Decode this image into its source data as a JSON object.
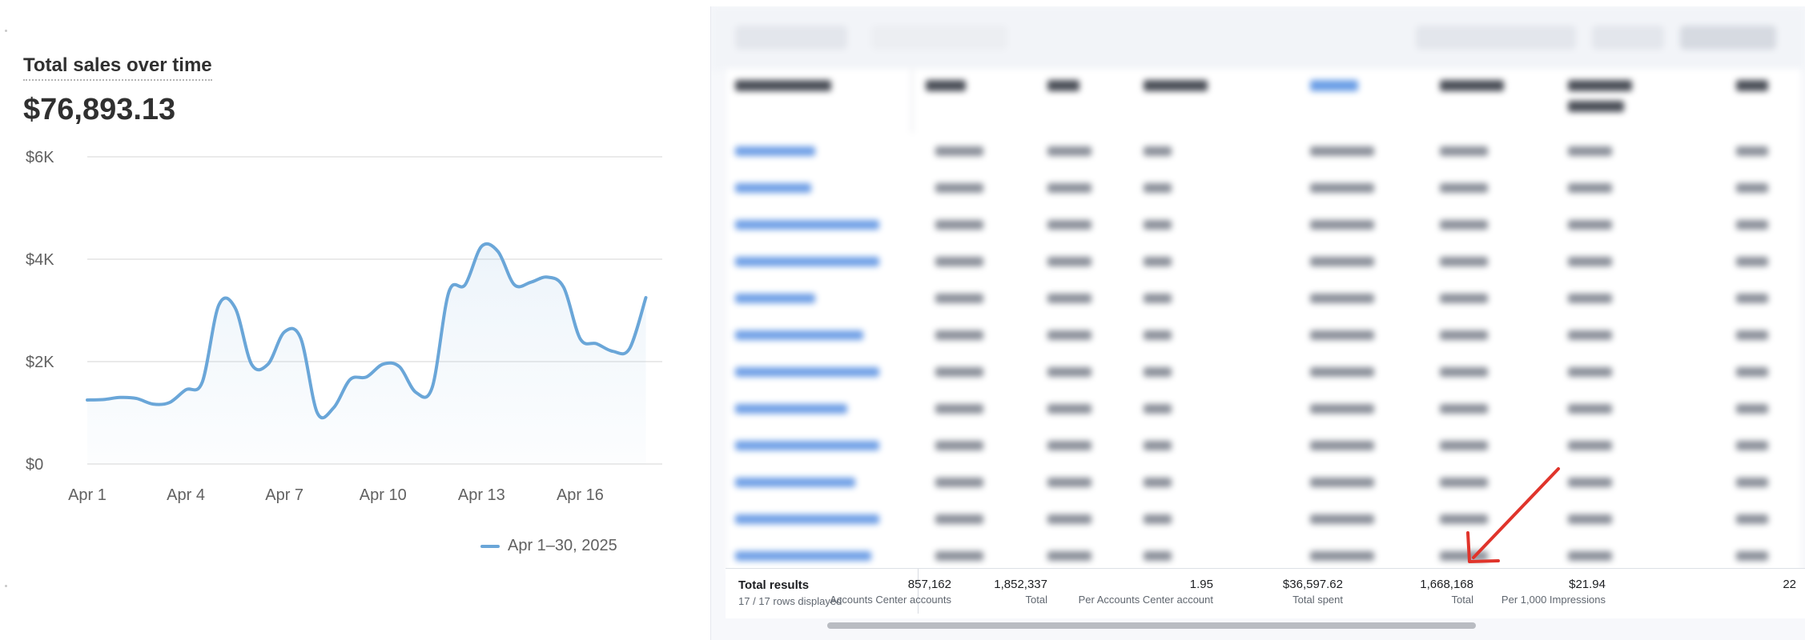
{
  "sales_card": {
    "title": "Total sales over time",
    "total": "$76,893.13",
    "legend_label": "Apr 1–30, 2025"
  },
  "chart_data": {
    "type": "line",
    "title": "Total sales over time",
    "xlabel": "",
    "ylabel": "",
    "x_tick_labels": [
      "Apr 1",
      "Apr 4",
      "Apr 7",
      "Apr 10",
      "Apr 13",
      "Apr 16"
    ],
    "y_tick_labels": [
      "$6K",
      "$4K",
      "$2K",
      "$0"
    ],
    "ylim": [
      0,
      6000
    ],
    "grid": true,
    "legend_position": "bottom-center",
    "series": [
      {
        "name": "Apr 1–30, 2025",
        "color": "#6aa6d8",
        "x": [
          1,
          1.5,
          2,
          2.5,
          3,
          3.5,
          4,
          4.5,
          5,
          5.5,
          6,
          6.5,
          7,
          7.5,
          8,
          8.5,
          9,
          9.5,
          10,
          10.5,
          11,
          11.5,
          12,
          12.5,
          13,
          13.5,
          14,
          14.5,
          15,
          15.5,
          16,
          16.5,
          17,
          17.5,
          18
        ],
        "values": [
          1250,
          1260,
          1300,
          1280,
          1170,
          1200,
          1450,
          1600,
          3100,
          3050,
          1950,
          1950,
          2580,
          2450,
          1000,
          1100,
          1650,
          1700,
          1950,
          1900,
          1400,
          1500,
          3350,
          3500,
          4250,
          4150,
          3500,
          3550,
          3650,
          3450,
          2450,
          2350,
          2200,
          2250,
          3250
        ]
      }
    ]
  },
  "ads_table": {
    "totals_title": "Total results",
    "totals_subtitle": "17 / 17 rows displayed",
    "totals": [
      {
        "value": "857,162",
        "label": "Accounts Center accounts"
      },
      {
        "value": "1,852,337",
        "label": "Total"
      },
      {
        "value": "1.95",
        "label": "Per Accounts Center account"
      },
      {
        "value": "$36,597.62",
        "label": "Total spent"
      },
      {
        "value": "1,668,168",
        "label": "Total"
      },
      {
        "value": "$21.94",
        "label": "Per 1,000 Impressions"
      },
      {
        "value": "22",
        "label": ""
      }
    ]
  },
  "colors": {
    "line": "#6aa6d8",
    "arrow": "#e0342b"
  },
  "icons": [
    "arrow-annotation-icon"
  ]
}
